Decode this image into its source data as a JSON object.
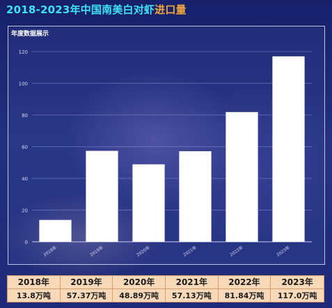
{
  "header": {
    "title_main": "2018-2023年中国南美白对虾",
    "title_accent": "进口量"
  },
  "panel": {
    "title": "年度数据展示"
  },
  "chart_data": {
    "type": "bar",
    "title": "年度数据展示",
    "categories": [
      "2018年",
      "2019年",
      "2020年",
      "2021年",
      "2022年",
      "2023年"
    ],
    "values": [
      13.8,
      57.37,
      48.89,
      57.13,
      81.84,
      117.0
    ],
    "unit": "万吨",
    "ylim": [
      0,
      120
    ],
    "yticks": [
      0,
      20,
      40,
      60,
      80,
      100,
      120
    ],
    "grid": true,
    "bar_color": "#ffffff",
    "grid_color": "#8d93c9",
    "tick_label_color": "#d6d9f2"
  },
  "table": {
    "years": [
      "2018年",
      "2019年",
      "2020年",
      "2021年",
      "2022年",
      "2023年"
    ],
    "values": [
      "13.8万吨",
      "57.37万吨",
      "48.89万吨",
      "57.13万吨",
      "81.84万吨",
      "117.0万吨"
    ]
  }
}
